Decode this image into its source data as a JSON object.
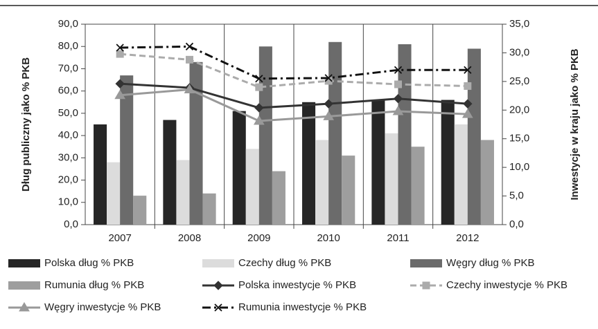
{
  "chart_data": {
    "type": "combo",
    "categories": [
      "2007",
      "2008",
      "2009",
      "2010",
      "2011",
      "2012"
    ],
    "ylabel": "Dług publiczny jako % PKB",
    "y2label": "Inwestycje w kraju jako % PKB",
    "ylim": [
      0,
      90
    ],
    "yticks": [
      {
        "value": 0,
        "label": "0,0"
      },
      {
        "value": 10,
        "label": "10,0"
      },
      {
        "value": 20,
        "label": "20,0"
      },
      {
        "value": 30,
        "label": "30,0"
      },
      {
        "value": 40,
        "label": "40,0"
      },
      {
        "value": 50,
        "label": "50,0"
      },
      {
        "value": 60,
        "label": "60,0"
      },
      {
        "value": 70,
        "label": "70,0"
      },
      {
        "value": 80,
        "label": "80,0"
      },
      {
        "value": 90,
        "label": "90,0"
      }
    ],
    "y2lim": [
      0,
      35
    ],
    "y2ticks": [
      {
        "value": 0,
        "label": "0,0"
      },
      {
        "value": 5,
        "label": "5,0"
      },
      {
        "value": 10,
        "label": "10,0"
      },
      {
        "value": 15,
        "label": "15,0"
      },
      {
        "value": 20,
        "label": "20,0"
      },
      {
        "value": 25,
        "label": "25,0"
      },
      {
        "value": 30,
        "label": "30,0"
      },
      {
        "value": 35,
        "label": "35,0"
      }
    ],
    "series": [
      {
        "name": "Polska dług % PKB",
        "type": "bar",
        "color": "#262626",
        "values": [
          45,
          47,
          51,
          55,
          56,
          56
        ]
      },
      {
        "name": "Czechy dług % PKB",
        "type": "bar",
        "color": "#dcdcdc",
        "values": [
          28,
          29,
          34,
          38,
          41,
          45
        ]
      },
      {
        "name": "Węgry dług % PKB",
        "type": "bar",
        "color": "#6b6b6b",
        "values": [
          67,
          73,
          80,
          82,
          81,
          79
        ]
      },
      {
        "name": "Rumunia dług % PKB",
        "type": "bar",
        "color": "#9e9e9e",
        "values": [
          13,
          14,
          24,
          31,
          35,
          38
        ]
      },
      {
        "name": "Polska inwestycje % PKB",
        "type": "line",
        "axis": "y2",
        "color": "#333333",
        "marker": "diamond",
        "dash": "solid",
        "values": [
          24.6,
          23.9,
          20.4,
          21.1,
          22,
          21.1
        ]
      },
      {
        "name": "Czechy inwestycje % PKB",
        "type": "line",
        "axis": "y2",
        "color": "#ababab",
        "marker": "square",
        "dash": "dashed",
        "values": [
          29.8,
          28.8,
          24,
          25.1,
          24.5,
          24.2
        ]
      },
      {
        "name": "Węgry inwestycje % PKB",
        "type": "line",
        "axis": "y2",
        "color": "#999999",
        "marker": "triangle",
        "dash": "solid",
        "values": [
          22.6,
          23.6,
          18.1,
          18.9,
          19.8,
          19.3
        ]
      },
      {
        "name": "Rumunia inwestycje % PKB",
        "type": "line",
        "axis": "y2",
        "color": "#111111",
        "marker": "x",
        "dash": "dashdot",
        "values": [
          30.9,
          31.1,
          25.5,
          25.6,
          27,
          27
        ]
      }
    ]
  }
}
